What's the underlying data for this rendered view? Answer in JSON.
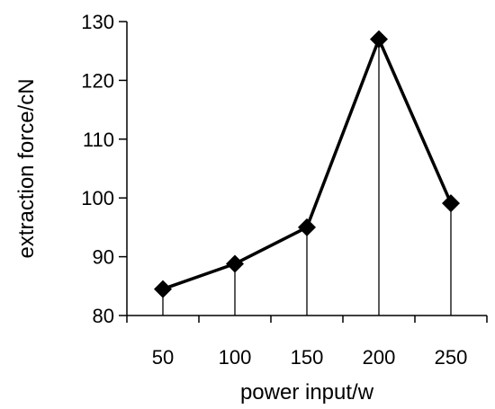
{
  "chart_data": {
    "type": "line",
    "title": "",
    "xlabel": "power input/w",
    "ylabel": "extraction force/cN",
    "x": [
      50,
      100,
      150,
      200,
      250
    ],
    "x_tick_labels": [
      "50",
      "100",
      "150",
      "200",
      "250"
    ],
    "series": [
      {
        "values": [
          84.5,
          88.8,
          95,
          127,
          99.1
        ],
        "marker": "diamond",
        "color": "#000000"
      }
    ],
    "ylim": [
      80,
      130
    ],
    "y_ticks": [
      80,
      90,
      100,
      110,
      120,
      130
    ],
    "drop_lines": true,
    "grid": false,
    "legend": "none"
  }
}
